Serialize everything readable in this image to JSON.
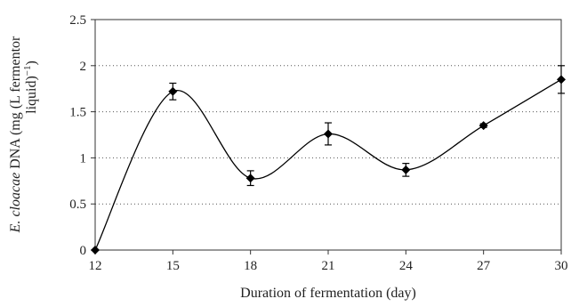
{
  "chart_data": {
    "type": "line",
    "xlabel": "Duration of fermentation (day)",
    "ylabel_parts": [
      "E. cloacae",
      " DNA (mg (L fermentor",
      "liquid)",
      "−1",
      ")"
    ],
    "x": [
      12,
      15,
      18,
      21,
      24,
      27,
      30
    ],
    "xticks": [
      "12",
      "15",
      "18",
      "21",
      "24",
      "27",
      "30"
    ],
    "yticks": [
      "0",
      "0.5",
      "1",
      "1.5",
      "2",
      "2.5"
    ],
    "xlim": [
      12,
      30
    ],
    "ylim": [
      0,
      2.5
    ],
    "grid": "horizontal dotted",
    "legend": "none",
    "series": [
      {
        "values": [
          0,
          1.72,
          0.78,
          1.26,
          0.87,
          1.35,
          1.85
        ],
        "errors": [
          0,
          0.09,
          0.08,
          0.12,
          0.07,
          0.02,
          0.15
        ],
        "color": "#000000",
        "marker": "diamond",
        "smooth": true
      }
    ]
  }
}
